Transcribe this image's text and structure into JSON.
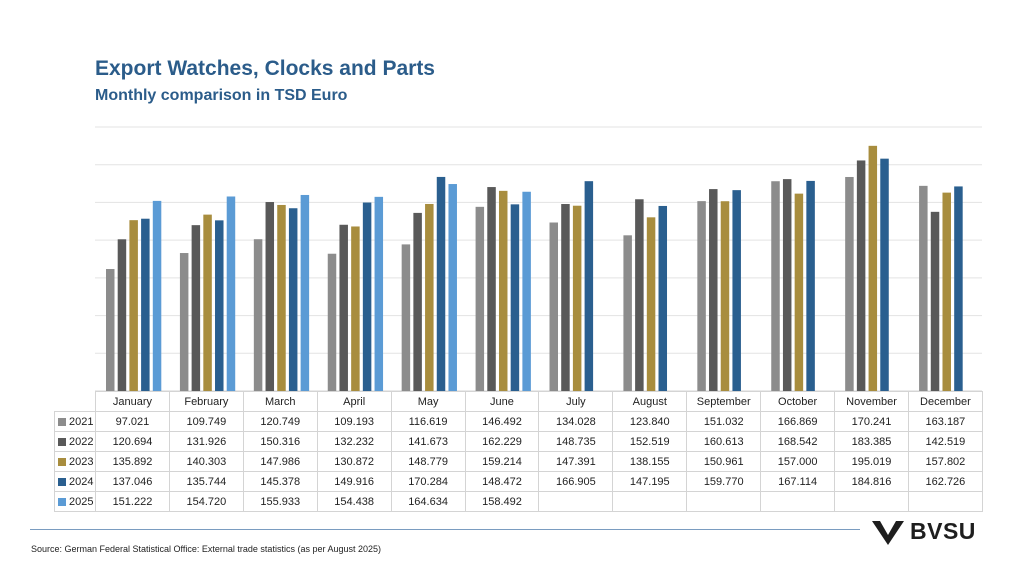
{
  "title": "Export Watches, Clocks and Parts",
  "subtitle": "Monthly comparison in TSD Euro",
  "source": "Source: German Federal Statistical Office: External trade statistics (as per August 2025)",
  "logo": {
    "text": "BVSU"
  },
  "colors": {
    "2021": "#8c8c8c",
    "2022": "#595959",
    "2023": "#a88d3e",
    "2024": "#2a5f8f",
    "2025": "#5b9bd5",
    "title": "#2b5c8a"
  },
  "chart_data": {
    "type": "bar",
    "categories": [
      "January",
      "February",
      "March",
      "April",
      "May",
      "June",
      "July",
      "August",
      "September",
      "October",
      "November",
      "December"
    ],
    "ylim": [
      0,
      210
    ],
    "grid": true,
    "legend": "table",
    "series": [
      {
        "name": "2021",
        "values": [
          97.021,
          109.749,
          120.749,
          109.193,
          116.619,
          146.492,
          134.028,
          123.84,
          151.032,
          166.869,
          170.241,
          163.187
        ],
        "labels": [
          "97.021",
          "109.749",
          "120.749",
          "109.193",
          "116.619",
          "146.492",
          "134.028",
          "123.840",
          "151.032",
          "166.869",
          "170.241",
          "163.187"
        ]
      },
      {
        "name": "2022",
        "values": [
          120.694,
          131.926,
          150.316,
          132.232,
          141.673,
          162.229,
          148.735,
          152.519,
          160.613,
          168.542,
          183.385,
          142.519
        ],
        "labels": [
          "120.694",
          "131.926",
          "150.316",
          "132.232",
          "141.673",
          "162.229",
          "148.735",
          "152.519",
          "160.613",
          "168.542",
          "183.385",
          "142.519"
        ]
      },
      {
        "name": "2023",
        "values": [
          135.892,
          140.303,
          147.986,
          130.872,
          148.779,
          159.214,
          147.391,
          138.155,
          150.961,
          157.0,
          195.019,
          157.802
        ],
        "labels": [
          "135.892",
          "140.303",
          "147.986",
          "130.872",
          "148.779",
          "159.214",
          "147.391",
          "138.155",
          "150.961",
          "157.000",
          "195.019",
          "157.802"
        ]
      },
      {
        "name": "2024",
        "values": [
          137.046,
          135.744,
          145.378,
          149.916,
          170.284,
          148.472,
          166.905,
          147.195,
          159.77,
          167.114,
          184.816,
          162.726
        ],
        "labels": [
          "137.046",
          "135.744",
          "145.378",
          "149.916",
          "170.284",
          "148.472",
          "166.905",
          "147.195",
          "159.770",
          "167.114",
          "184.816",
          "162.726"
        ]
      },
      {
        "name": "2025",
        "values": [
          151.222,
          154.72,
          155.933,
          154.438,
          164.634,
          158.492,
          null,
          null,
          null,
          null,
          null,
          null
        ],
        "labels": [
          "151.222",
          "154.720",
          "155.933",
          "154.438",
          "164.634",
          "158.492",
          "",
          "",
          "",
          "",
          "",
          ""
        ]
      }
    ]
  }
}
